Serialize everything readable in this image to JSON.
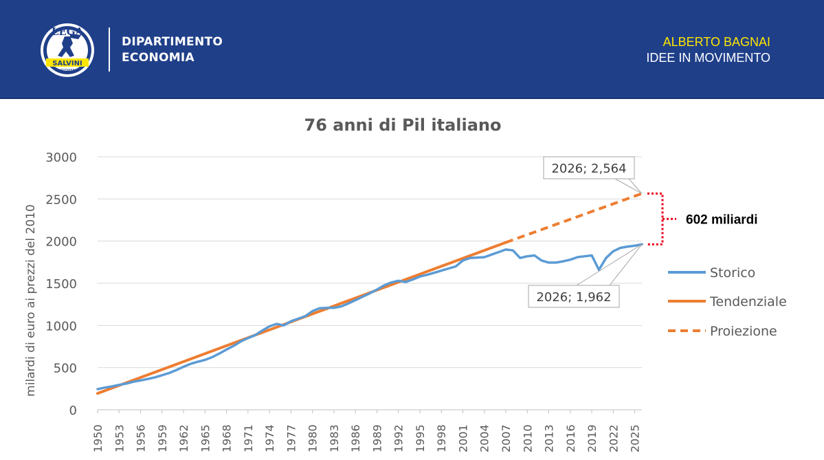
{
  "header": {
    "logo_text": "LEGA",
    "logo_band": "SALVINI",
    "logo_small": "PREMIER",
    "dept_line1": "DIPARTIMENTO",
    "dept_line2": "ECONOMIA",
    "author_name": "ALBERTO BAGNAI",
    "author_sub": "IDEE IN MOVIMENTO"
  },
  "colors": {
    "header_bg": "#1f3f89",
    "storico": "#5b9bd5",
    "tendenziale": "#ed7d31",
    "bracket": "#e8001c",
    "author_name": "#ffe600"
  },
  "chart_data": {
    "type": "line",
    "title": "76 anni di Pil italiano",
    "ylabel": "milardi di euro ai prezzi del 2010",
    "xlabel": "",
    "ylim": [
      0,
      3000
    ],
    "xlim": [
      1950,
      2026
    ],
    "yticks": [
      0,
      500,
      1000,
      1500,
      2000,
      2500,
      3000
    ],
    "xticks": [
      "1950",
      "1953",
      "1956",
      "1959",
      "1962",
      "1965",
      "1968",
      "1971",
      "1974",
      "1977",
      "1980",
      "1983",
      "1986",
      "1989",
      "1992",
      "1995",
      "1998",
      "2001",
      "2004",
      "2007",
      "2010",
      "2013",
      "2016",
      "2019",
      "2022",
      "2025"
    ],
    "grid": true,
    "legend_position": "right",
    "series": [
      {
        "name": "Storico",
        "style": "solid",
        "x": [
          1950,
          1951,
          1952,
          1953,
          1954,
          1955,
          1956,
          1957,
          1958,
          1959,
          1960,
          1961,
          1962,
          1963,
          1964,
          1965,
          1966,
          1967,
          1968,
          1969,
          1970,
          1971,
          1972,
          1973,
          1974,
          1975,
          1976,
          1977,
          1978,
          1979,
          1980,
          1981,
          1982,
          1983,
          1984,
          1985,
          1986,
          1987,
          1988,
          1989,
          1990,
          1991,
          1992,
          1993,
          1994,
          1995,
          1996,
          1997,
          1998,
          1999,
          2000,
          2001,
          2002,
          2003,
          2004,
          2005,
          2006,
          2007,
          2008,
          2009,
          2010,
          2011,
          2012,
          2013,
          2014,
          2015,
          2016,
          2017,
          2018,
          2019,
          2020,
          2021,
          2022,
          2023,
          2024,
          2025,
          2026
        ],
        "values": [
          245,
          263,
          277,
          296,
          311,
          333,
          348,
          365,
          385,
          410,
          436,
          471,
          510,
          545,
          570,
          592,
          624,
          668,
          715,
          758,
          810,
          850,
          885,
          940,
          990,
          1018,
          1000,
          1050,
          1080,
          1110,
          1170,
          1205,
          1208,
          1210,
          1225,
          1260,
          1300,
          1340,
          1380,
          1425,
          1475,
          1510,
          1530,
          1515,
          1545,
          1580,
          1600,
          1625,
          1650,
          1675,
          1700,
          1770,
          1800,
          1805,
          1810,
          1840,
          1870,
          1900,
          1890,
          1800,
          1820,
          1830,
          1770,
          1745,
          1745,
          1760,
          1780,
          1810,
          1820,
          1830,
          1660,
          1800,
          1880,
          1920,
          1935,
          1945,
          1962
        ]
      },
      {
        "name": "Tendenziale",
        "style": "solid",
        "x": [
          1950,
          2007
        ],
        "values": [
          195,
          1984
        ]
      },
      {
        "name": "Proiezione",
        "style": "dashed",
        "x": [
          2007,
          2026
        ],
        "values": [
          1984,
          2564
        ]
      }
    ],
    "annotations": [
      {
        "label": "2026; 2,564",
        "x": 2026,
        "y": 2564
      },
      {
        "label": "2026; 1,962",
        "x": 2026,
        "y": 1962
      },
      {
        "label": "602 miliardi"
      }
    ]
  }
}
